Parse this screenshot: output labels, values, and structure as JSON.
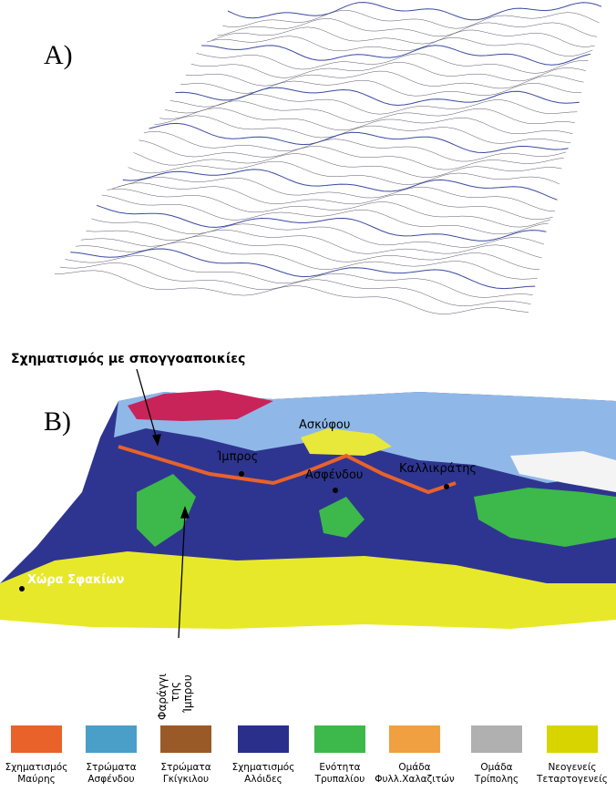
{
  "panel_a": {
    "label": "A)"
  },
  "panel_b": {
    "label": "B)",
    "annotation": "Σχηματισμός με σπογγοαποικίες",
    "places": [
      "Ασκύφου",
      "Ίμπρος",
      "Ασφένδου",
      "Καλλικράτης",
      "Χώρα Σφακίων"
    ],
    "gorge_label": [
      "Φαράγγι",
      "της",
      "Ίμπρου"
    ]
  },
  "legend": [
    {
      "lines": [
        "Σχηματισμός",
        "Μαύρης"
      ],
      "color": "#e8622a"
    },
    {
      "lines": [
        "Στρώματα",
        "Ασφένδου"
      ],
      "color": "#4a9fc8"
    },
    {
      "lines": [
        "Στρώματα",
        "Γκίγκιλου"
      ],
      "color": "#9a5a28"
    },
    {
      "lines": [
        "Σχηματισμός",
        "Αλόιδες"
      ],
      "color": "#2a2f8c"
    },
    {
      "lines": [
        "Ενότητα",
        "Τρυπαλίου"
      ],
      "color": "#3db84a"
    },
    {
      "lines": [
        "Ομάδα",
        "Φυλλ.Χαλαζιτών"
      ],
      "color": "#f0a040"
    },
    {
      "lines": [
        "Ομάδα",
        "Τρίπολης"
      ],
      "color": "#b0b0b0"
    },
    {
      "lines": [
        "Νεογενείς",
        "Τεταρτογενείς"
      ],
      "color": "#d8d400"
    }
  ]
}
